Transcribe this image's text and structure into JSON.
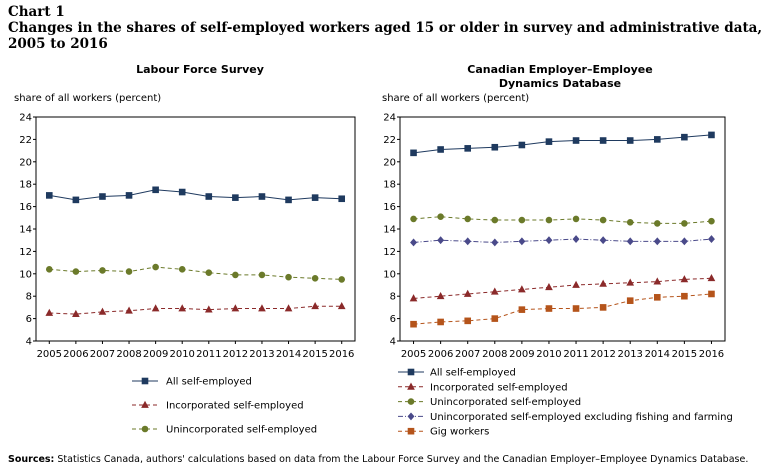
{
  "header": {
    "chart_number": "Chart 1",
    "title": "Changes in the shares of self-employed workers aged 15 or older in survey and administrative data, 2005 to 2016"
  },
  "source": {
    "label": "Sources:",
    "text": "Statistics Canada, authors' calculations based on data from the Labour Force Survey and the Canadian Employer–Employee Dynamics Database."
  },
  "colors": {
    "navy": "#1f3a5f",
    "maroon": "#8b2a2a",
    "olive": "#6b7a2a",
    "slate": "#4a4a8a",
    "orange": "#b5541b"
  },
  "chart_data": [
    {
      "type": "line",
      "title": "Labour Force Survey",
      "ylabel": "share of all workers (percent)",
      "ylim": [
        4,
        24
      ],
      "yticks": [
        "4",
        "6",
        "8",
        "10",
        "12",
        "14",
        "16",
        "18",
        "20",
        "22",
        "24"
      ],
      "x": [
        "2005",
        "2006",
        "2007",
        "2008",
        "2009",
        "2010",
        "2011",
        "2012",
        "2013",
        "2014",
        "2015",
        "2016"
      ],
      "legend_position": "bottom",
      "series": [
        {
          "name": "All self-employed",
          "style": "solid",
          "marker": "square",
          "color": "#1f3a5f",
          "values": [
            17.0,
            16.6,
            16.9,
            17.0,
            17.5,
            17.3,
            16.9,
            16.8,
            16.9,
            16.6,
            16.8,
            16.7
          ]
        },
        {
          "name": "Incorporated self-employed",
          "style": "dashed",
          "marker": "triangle",
          "color": "#8b2a2a",
          "values": [
            6.5,
            6.4,
            6.6,
            6.7,
            6.9,
            6.9,
            6.8,
            6.9,
            6.9,
            6.9,
            7.1,
            7.1
          ]
        },
        {
          "name": "Unincorporated self-employed",
          "style": "dashed",
          "marker": "circle",
          "color": "#6b7a2a",
          "values": [
            10.4,
            10.2,
            10.3,
            10.2,
            10.6,
            10.4,
            10.1,
            9.9,
            9.9,
            9.7,
            9.6,
            9.5
          ]
        }
      ]
    },
    {
      "type": "line",
      "title": "Canadian Employer–Employee Dynamics Database",
      "title_lines": [
        "Canadian Employer–Employee",
        "Dynamics Database"
      ],
      "ylabel": "share of all workers (percent)",
      "ylim": [
        4,
        24
      ],
      "yticks": [
        "4",
        "6",
        "8",
        "10",
        "12",
        "14",
        "16",
        "18",
        "20",
        "22",
        "24"
      ],
      "x": [
        "2005",
        "2006",
        "2007",
        "2008",
        "2009",
        "2010",
        "2011",
        "2012",
        "2013",
        "2014",
        "2015",
        "2016"
      ],
      "legend_position": "bottom",
      "series": [
        {
          "name": "All self-employed",
          "style": "solid",
          "marker": "square",
          "color": "#1f3a5f",
          "values": [
            20.8,
            21.1,
            21.2,
            21.3,
            21.5,
            21.8,
            21.9,
            21.9,
            21.9,
            22.0,
            22.2,
            22.4
          ]
        },
        {
          "name": "Incorporated self-employed",
          "style": "dashed",
          "marker": "triangle",
          "color": "#8b2a2a",
          "values": [
            7.8,
            8.0,
            8.2,
            8.4,
            8.6,
            8.8,
            9.0,
            9.1,
            9.2,
            9.3,
            9.5,
            9.6
          ]
        },
        {
          "name": "Unincorporated self-employed",
          "style": "dashed",
          "marker": "circle",
          "color": "#6b7a2a",
          "values": [
            14.9,
            15.1,
            14.9,
            14.8,
            14.8,
            14.8,
            14.9,
            14.8,
            14.6,
            14.5,
            14.5,
            14.7
          ]
        },
        {
          "name": "Unincorporated self-employed excluding fishing and farming",
          "style": "dashdot",
          "marker": "diamond",
          "color": "#4a4a8a",
          "values": [
            12.8,
            13.0,
            12.9,
            12.8,
            12.9,
            13.0,
            13.1,
            13.0,
            12.9,
            12.9,
            12.9,
            13.1
          ]
        },
        {
          "name": "Gig workers",
          "style": "dashed",
          "marker": "square",
          "color": "#b5541b",
          "values": [
            5.5,
            5.7,
            5.8,
            6.0,
            6.8,
            6.9,
            6.9,
            7.0,
            7.6,
            7.9,
            8.0,
            8.2
          ]
        }
      ]
    }
  ]
}
